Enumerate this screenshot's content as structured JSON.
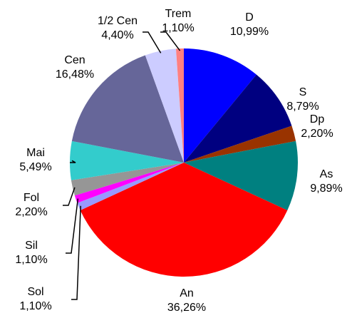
{
  "chart_data": {
    "type": "pie",
    "categories": [
      "D",
      "S",
      "Dp",
      "As",
      "An",
      "Sol",
      "Sil",
      "Fol",
      "Mai",
      "Cen",
      "1/2 Cen",
      "Trem"
    ],
    "values": [
      10.99,
      8.79,
      2.2,
      9.89,
      36.26,
      1.1,
      1.1,
      2.2,
      5.49,
      16.48,
      4.4,
      1.1
    ],
    "value_labels": [
      "10,99%",
      "8,79%",
      "2,20%",
      "9,89%",
      "36,26%",
      "1,10%",
      "1,10%",
      "2,20%",
      "5,49%",
      "16,48%",
      "4,40%",
      "1,10%"
    ],
    "colors": [
      "#0000ff",
      "#000080",
      "#993300",
      "#008080",
      "#ff0000",
      "#9999ff",
      "#ff00ff",
      "#969696",
      "#33cccc",
      "#666699",
      "#ccccff",
      "#ff8080"
    ]
  }
}
